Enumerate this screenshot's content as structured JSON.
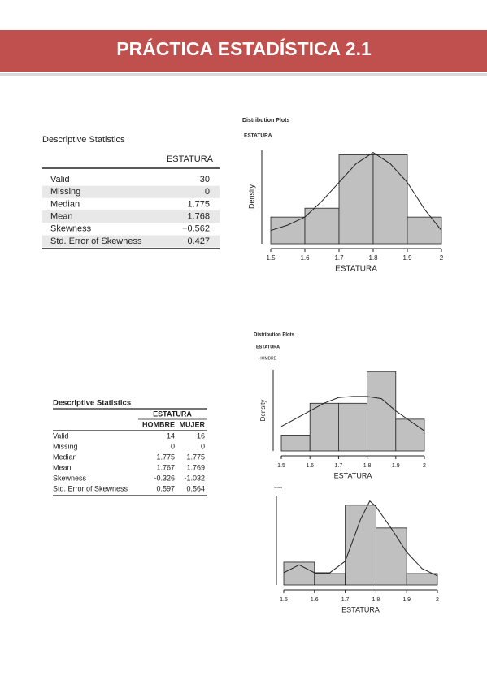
{
  "header": {
    "title": "PRÁCTICA ESTADÍSTICA 2.1"
  },
  "tables": [
    {
      "title": "Descriptive Statistics",
      "columns": [
        "ESTATURA"
      ],
      "rows": [
        {
          "label": "Valid",
          "values": [
            "30"
          ]
        },
        {
          "label": "Missing",
          "values": [
            "0"
          ]
        },
        {
          "label": "Median",
          "values": [
            "1.775"
          ]
        },
        {
          "label": "Mean",
          "values": [
            "1.768"
          ]
        },
        {
          "label": "Skewness",
          "values": [
            "−0.562"
          ]
        },
        {
          "label": "Std. Error of Skewness",
          "values": [
            "0.427"
          ]
        }
      ]
    },
    {
      "title": "Descriptive Statistics",
      "group": "ESTATURA",
      "columns": [
        "HOMBRE",
        "MUJER"
      ],
      "rows": [
        {
          "label": "Valid",
          "values": [
            "14",
            "16"
          ]
        },
        {
          "label": "Missing",
          "values": [
            "0",
            "0"
          ]
        },
        {
          "label": "Median",
          "values": [
            "1.775",
            "1.775"
          ]
        },
        {
          "label": "Mean",
          "values": [
            "1.767",
            "1.769"
          ]
        },
        {
          "label": "Skewness",
          "values": [
            "-0.326",
            "-1.032"
          ]
        },
        {
          "label": "Std. Error of Skewness",
          "values": [
            "0.597",
            "0.564"
          ]
        }
      ]
    }
  ],
  "chart_data": [
    {
      "type": "histogram",
      "title": "Distribution Plots",
      "subtitle": "ESTATURA",
      "ylabel": "Density",
      "xlabel": "ESTATURA",
      "bins": [
        1.5,
        1.6,
        1.7,
        1.8,
        1.9,
        2.0
      ],
      "values": [
        1.0,
        1.333,
        3.333,
        3.333,
        1.0
      ],
      "color": "#c0c0c0",
      "curve": {
        "x": [
          1.5,
          1.55,
          1.6,
          1.65,
          1.7,
          1.75,
          1.8,
          1.85,
          1.9,
          1.95,
          2.0
        ],
        "values": [
          0.5,
          0.7,
          1.0,
          1.6,
          2.3,
          3.0,
          3.42,
          3.0,
          2.3,
          1.3,
          0.5
        ]
      },
      "xlim": [
        1.5,
        2.0
      ],
      "ylim": [
        0,
        3.5
      ],
      "xticks": [
        1.5,
        1.6,
        1.7,
        1.8,
        1.9,
        2
      ]
    },
    {
      "type": "histogram",
      "title": "Distribution Plots",
      "subtitle": "ESTATURA",
      "group": "HOMBRE",
      "ylabel": "Density",
      "xlabel": "ESTATURA",
      "bins": [
        1.5,
        1.6,
        1.7,
        1.8,
        1.9,
        2.0
      ],
      "values": [
        0.714,
        2.143,
        2.143,
        3.571,
        1.429
      ],
      "color": "#c0c0c0",
      "curve": {
        "x": [
          1.5,
          1.55,
          1.6,
          1.65,
          1.7,
          1.75,
          1.8,
          1.85,
          1.9,
          1.95,
          2.0
        ],
        "values": [
          1.1,
          1.45,
          1.8,
          2.15,
          2.4,
          2.45,
          2.45,
          2.35,
          1.8,
          1.35,
          0.9
        ]
      },
      "xlim": [
        1.5,
        2.0
      ],
      "ylim": [
        0,
        3.65
      ],
      "xticks": [
        1.5,
        1.6,
        1.7,
        1.8,
        1.9,
        2
      ]
    },
    {
      "type": "histogram",
      "group": "MUJER",
      "xlabel": "ESTATURA",
      "bins": [
        1.5,
        1.6,
        1.7,
        1.8,
        1.9,
        2.0
      ],
      "values": [
        1.25,
        0.625,
        4.375,
        3.125,
        0.625
      ],
      "color": "#c0c0c0",
      "curve": {
        "x": [
          1.5,
          1.55,
          1.6,
          1.65,
          1.7,
          1.75,
          1.78,
          1.8,
          1.85,
          1.9,
          1.95,
          2.0
        ],
        "values": [
          0.67,
          1.1,
          0.67,
          0.67,
          1.3,
          3.6,
          4.6,
          4.3,
          3.1,
          1.8,
          0.9,
          0.5
        ]
      },
      "xlim": [
        1.5,
        2.0
      ],
      "ylim": [
        0,
        4.9
      ],
      "xticks": [
        1.5,
        1.6,
        1.7,
        1.8,
        1.9,
        2
      ]
    }
  ]
}
